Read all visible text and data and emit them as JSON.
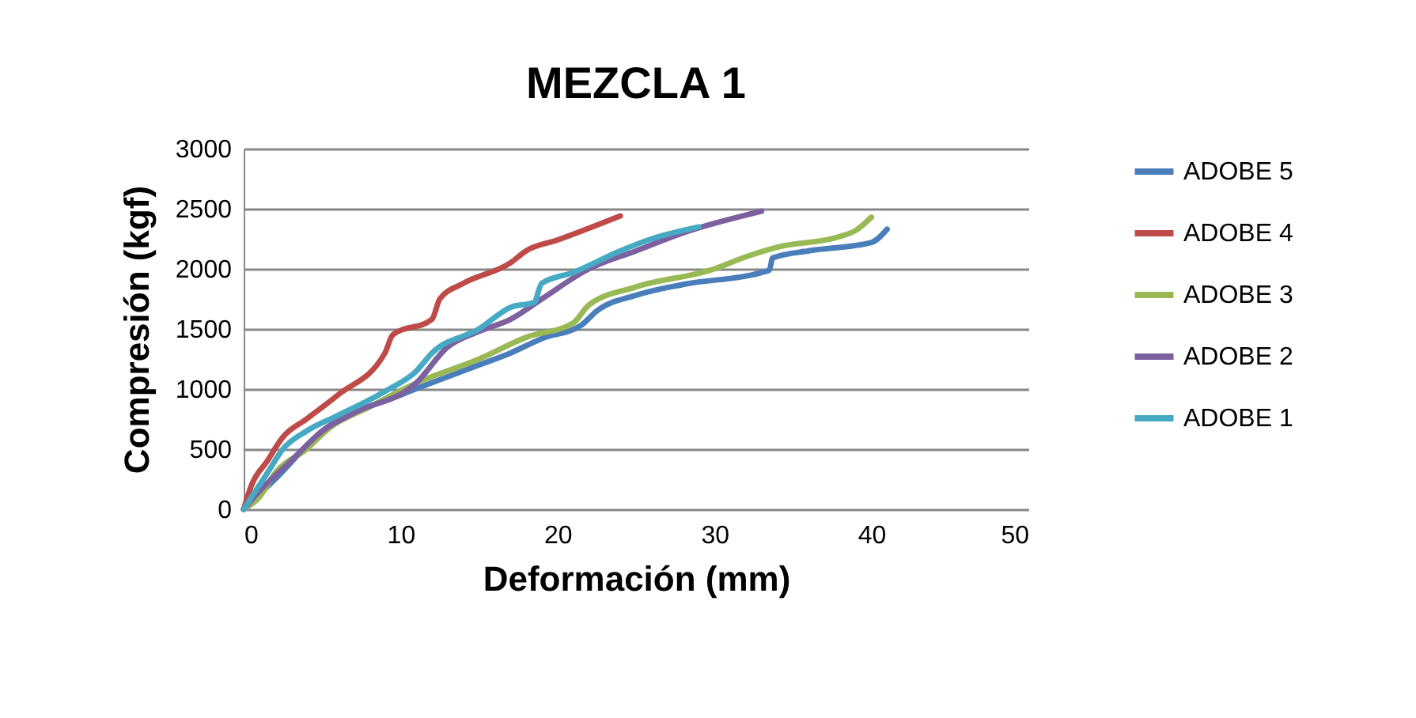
{
  "chart_data": {
    "type": "line",
    "title": "MEZCLA 1",
    "xlabel": "Deformación (mm)",
    "ylabel": "Compresión (kgf)",
    "xlim": [
      0,
      50
    ],
    "xticks": [
      0,
      10,
      20,
      30,
      40,
      50
    ],
    "ylim": [
      0,
      3000
    ],
    "yticks": [
      0,
      500,
      1000,
      1500,
      2000,
      2500,
      3000
    ],
    "grid": "y",
    "legend": "right",
    "marker": "none",
    "line_style": "solid",
    "series": [
      {
        "name": "ADOBE 5",
        "color": "#4a7ebb",
        "x": [
          0,
          2,
          5,
          10,
          15,
          17,
          19,
          21.5,
          22.5,
          25,
          28,
          33,
          33.5,
          33.7,
          36,
          40,
          41
        ],
        "values": [
          0,
          250,
          650,
          950,
          1200,
          1300,
          1420,
          1530,
          1650,
          1780,
          1870,
          1970,
          1990,
          2090,
          2150,
          2220,
          2330
        ]
      },
      {
        "name": "ADOBE 4",
        "color": "#be4b48",
        "x": [
          0,
          0.5,
          1.5,
          2.5,
          4,
          6,
          9,
          9.5,
          12,
          12.5,
          14,
          17,
          18,
          20,
          24
        ],
        "values": [
          0,
          200,
          400,
          600,
          750,
          950,
          1300,
          1450,
          1580,
          1750,
          1880,
          2050,
          2150,
          2240,
          2440
        ]
      },
      {
        "name": "ADOBE 3",
        "color": "#98b954",
        "x": [
          0,
          1,
          2,
          4,
          5.5,
          8,
          11,
          15,
          18,
          21,
          22,
          25,
          30,
          32,
          34,
          38,
          39,
          40
        ],
        "values": [
          0,
          100,
          300,
          500,
          680,
          850,
          1050,
          1250,
          1430,
          1550,
          1700,
          1850,
          2000,
          2100,
          2180,
          2270,
          2320,
          2430
        ]
      },
      {
        "name": "ADOBE 2",
        "color": "#7d60a0",
        "x": [
          0,
          1,
          3,
          5,
          7,
          11,
          13,
          15,
          17,
          19,
          22,
          25,
          28,
          33
        ],
        "values": [
          0,
          150,
          400,
          650,
          800,
          1050,
          1350,
          1480,
          1580,
          1750,
          2000,
          2150,
          2300,
          2480
        ]
      },
      {
        "name": "ADOBE 1",
        "color": "#46aac5",
        "x": [
          0,
          1.5,
          2.5,
          4,
          6,
          9,
          11,
          12,
          15,
          17,
          18.5,
          19,
          21,
          24,
          26,
          29
        ],
        "values": [
          0,
          300,
          500,
          650,
          780,
          980,
          1150,
          1300,
          1500,
          1680,
          1720,
          1880,
          1970,
          2150,
          2250,
          2350
        ]
      }
    ]
  }
}
